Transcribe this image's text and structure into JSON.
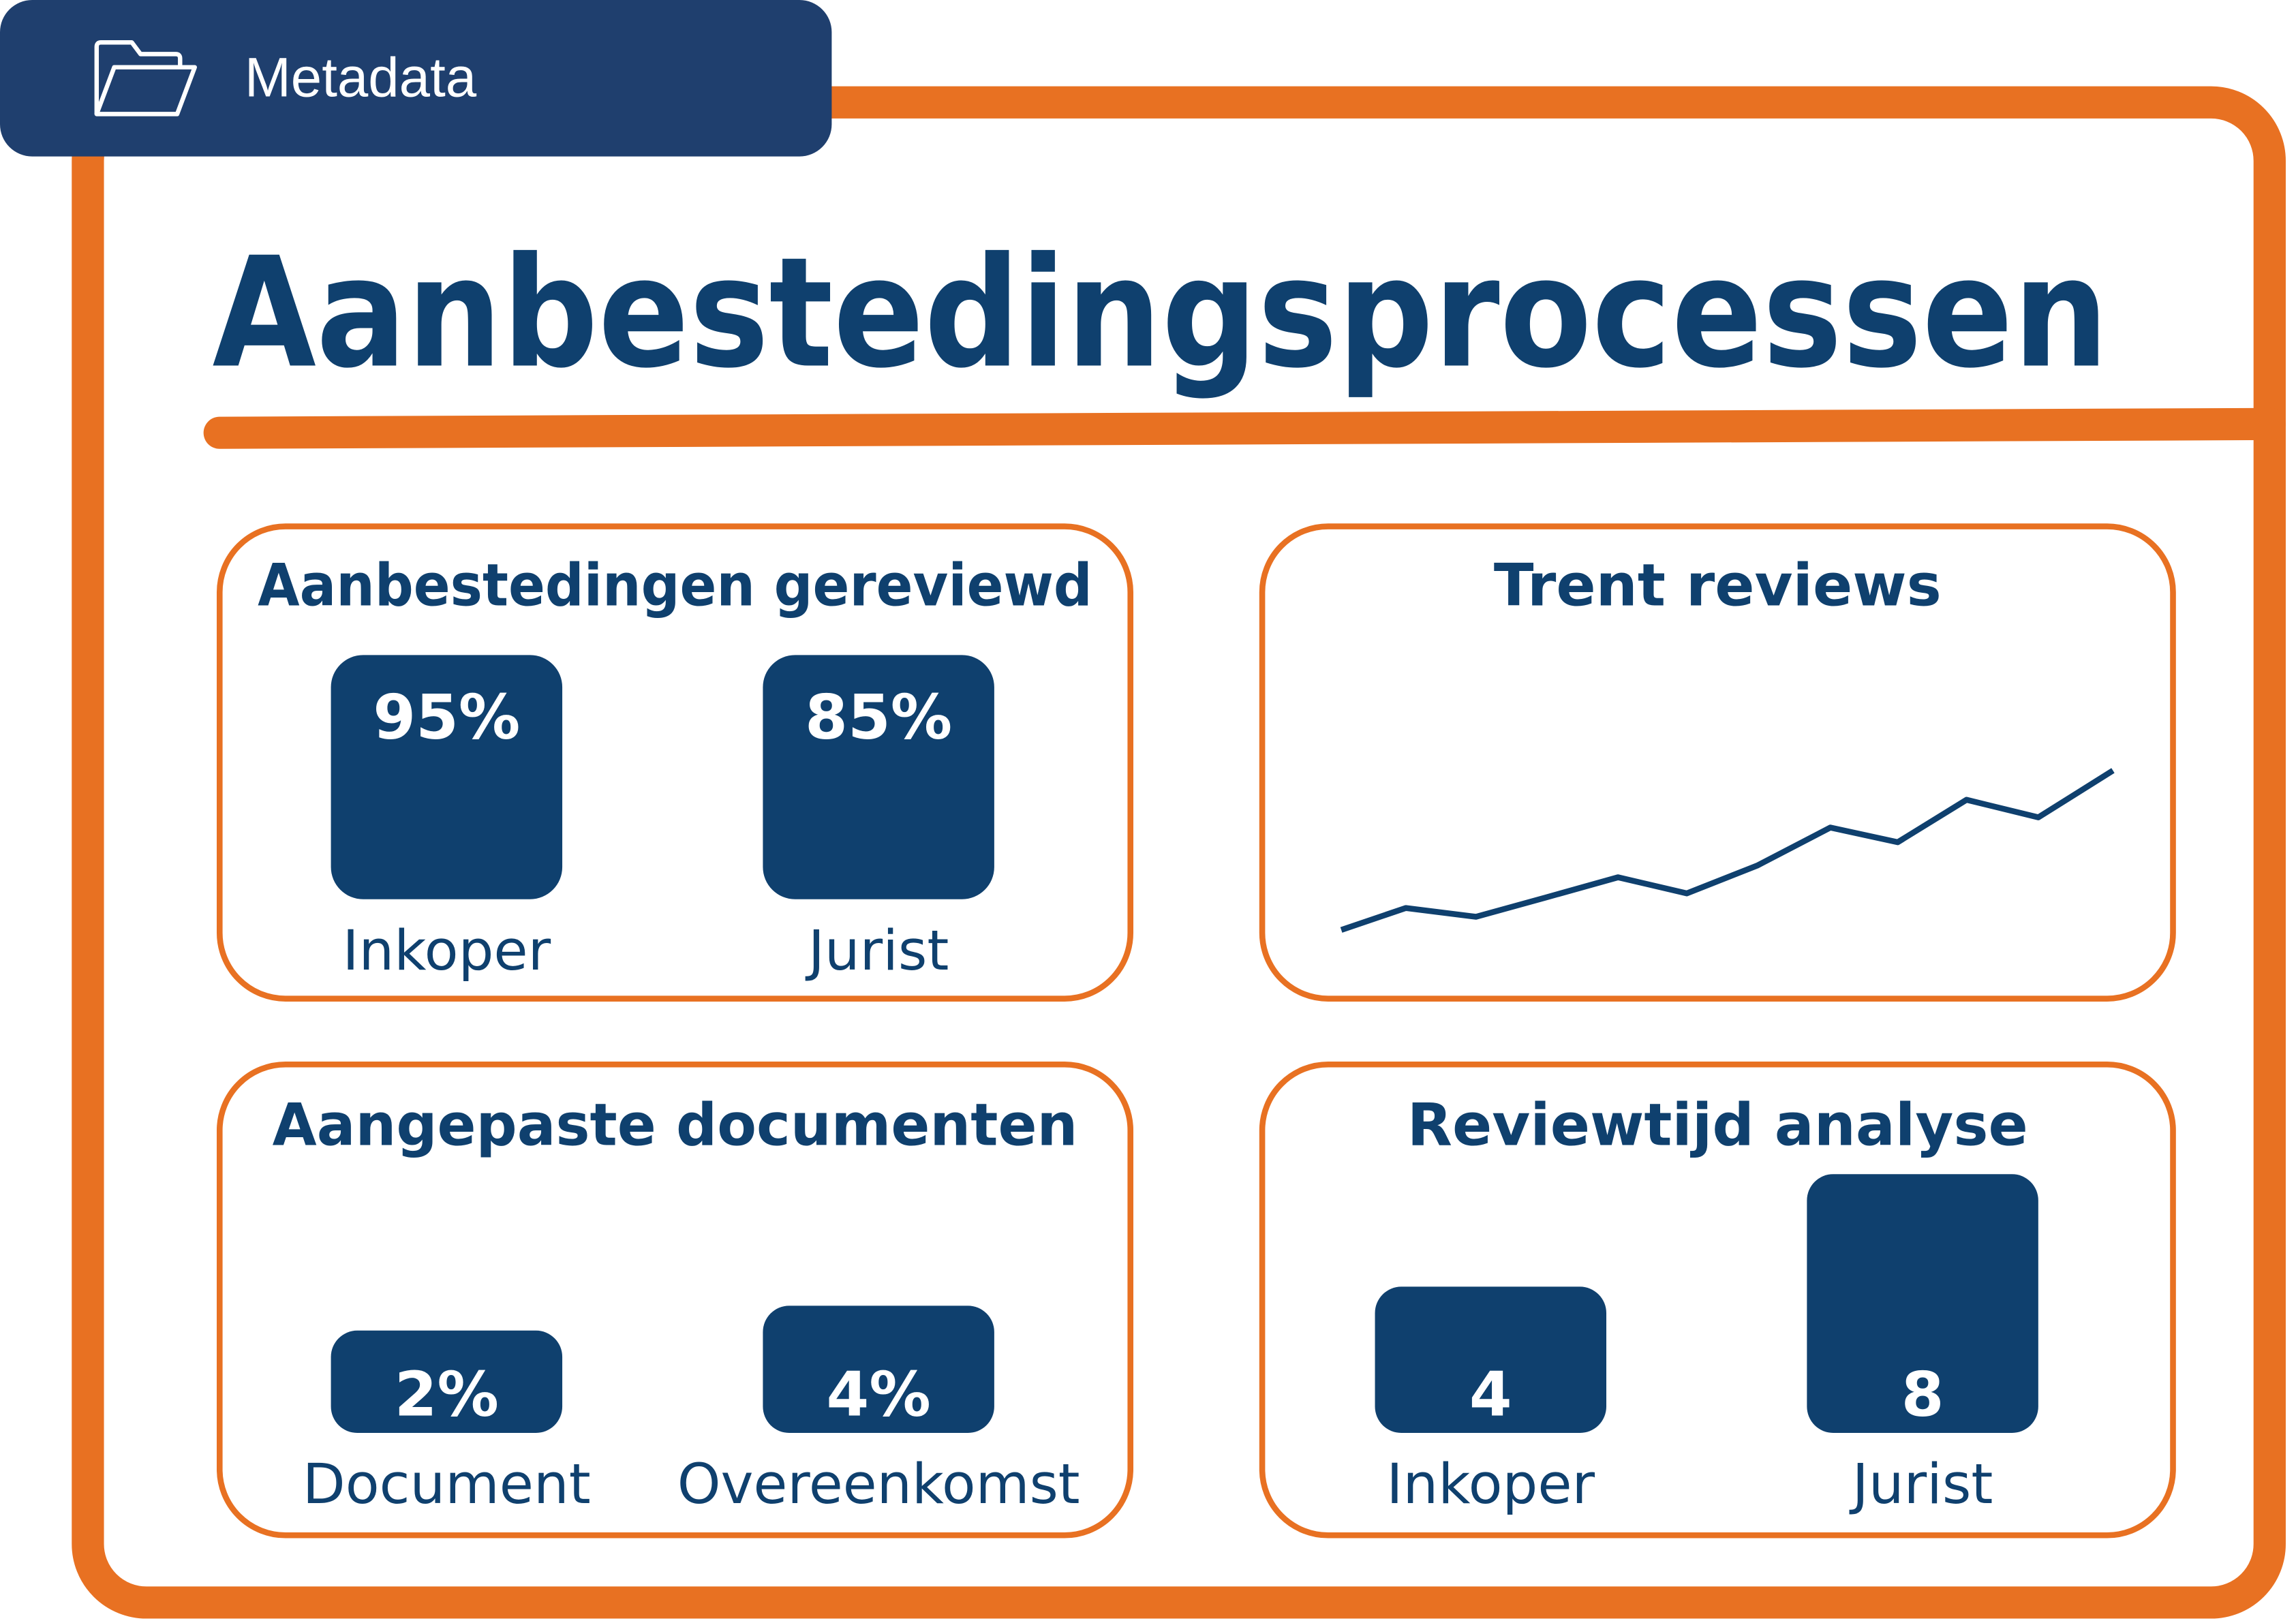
{
  "header": {
    "tab": "Metadata",
    "title": "Aanbestedingsprocessen"
  },
  "panels": [
    {
      "title": "Aanbestedingen gereviewd",
      "tiles": [
        {
          "value": "95%",
          "label": "Inkoper"
        },
        {
          "value": "85%",
          "label": "Jurist"
        }
      ]
    },
    {
      "title": "Trent reviews"
    },
    {
      "title": "Aangepaste documenten",
      "tiles": [
        {
          "value": "2%",
          "label": "Document"
        },
        {
          "value": "4%",
          "label": "Overeenkomst"
        }
      ]
    },
    {
      "title": "Reviewtijd analyse",
      "tiles": [
        {
          "value": "4",
          "label": "Inkoper"
        },
        {
          "value": "8",
          "label": "Jurist"
        }
      ]
    }
  ]
}
